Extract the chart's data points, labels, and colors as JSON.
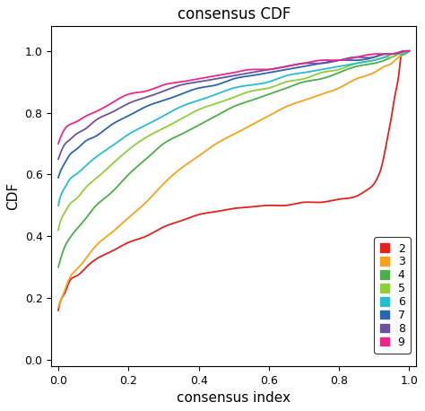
{
  "title": "consensus CDF",
  "xlabel": "consensus index",
  "ylabel": "CDF",
  "xlim": [
    -0.02,
    1.02
  ],
  "ylim": [
    -0.02,
    1.08
  ],
  "xticks": [
    0.0,
    0.2,
    0.4,
    0.6,
    0.8,
    1.0
  ],
  "yticks": [
    0.0,
    0.2,
    0.4,
    0.6,
    0.8,
    1.0
  ],
  "curves": [
    {
      "label": "2",
      "color": "#e4211c",
      "key_points": [
        [
          0.0,
          0.16
        ],
        [
          0.01,
          0.2
        ],
        [
          0.02,
          0.22
        ],
        [
          0.03,
          0.25
        ],
        [
          0.05,
          0.27
        ],
        [
          0.08,
          0.3
        ],
        [
          0.1,
          0.32
        ],
        [
          0.15,
          0.35
        ],
        [
          0.2,
          0.38
        ],
        [
          0.25,
          0.4
        ],
        [
          0.3,
          0.43
        ],
        [
          0.35,
          0.45
        ],
        [
          0.4,
          0.47
        ],
        [
          0.45,
          0.48
        ],
        [
          0.5,
          0.49
        ],
        [
          0.55,
          0.495
        ],
        [
          0.6,
          0.5
        ],
        [
          0.65,
          0.5
        ],
        [
          0.7,
          0.51
        ],
        [
          0.75,
          0.51
        ],
        [
          0.8,
          0.52
        ],
        [
          0.85,
          0.53
        ],
        [
          0.88,
          0.55
        ],
        [
          0.9,
          0.57
        ],
        [
          0.91,
          0.59
        ],
        [
          0.92,
          0.62
        ],
        [
          0.93,
          0.67
        ],
        [
          0.94,
          0.73
        ],
        [
          0.95,
          0.79
        ],
        [
          0.96,
          0.86
        ],
        [
          0.97,
          0.92
        ],
        [
          0.975,
          0.97
        ],
        [
          0.98,
          1.0
        ]
      ]
    },
    {
      "label": "3",
      "color": "#f8a11e",
      "key_points": [
        [
          0.0,
          0.17
        ],
        [
          0.01,
          0.2
        ],
        [
          0.02,
          0.23
        ],
        [
          0.03,
          0.26
        ],
        [
          0.05,
          0.29
        ],
        [
          0.08,
          0.33
        ],
        [
          0.1,
          0.36
        ],
        [
          0.15,
          0.41
        ],
        [
          0.2,
          0.46
        ],
        [
          0.25,
          0.51
        ],
        [
          0.3,
          0.57
        ],
        [
          0.35,
          0.62
        ],
        [
          0.4,
          0.66
        ],
        [
          0.45,
          0.7
        ],
        [
          0.5,
          0.73
        ],
        [
          0.55,
          0.76
        ],
        [
          0.6,
          0.79
        ],
        [
          0.65,
          0.82
        ],
        [
          0.7,
          0.84
        ],
        [
          0.75,
          0.86
        ],
        [
          0.8,
          0.88
        ],
        [
          0.85,
          0.91
        ],
        [
          0.9,
          0.93
        ],
        [
          0.93,
          0.95
        ],
        [
          0.95,
          0.96
        ],
        [
          0.97,
          0.98
        ],
        [
          0.99,
          0.99
        ],
        [
          1.0,
          1.0
        ]
      ]
    },
    {
      "label": "4",
      "color": "#4dae49",
      "key_points": [
        [
          0.0,
          0.3
        ],
        [
          0.01,
          0.34
        ],
        [
          0.02,
          0.37
        ],
        [
          0.03,
          0.39
        ],
        [
          0.05,
          0.42
        ],
        [
          0.08,
          0.46
        ],
        [
          0.1,
          0.49
        ],
        [
          0.15,
          0.54
        ],
        [
          0.2,
          0.6
        ],
        [
          0.25,
          0.65
        ],
        [
          0.3,
          0.7
        ],
        [
          0.35,
          0.73
        ],
        [
          0.4,
          0.76
        ],
        [
          0.45,
          0.79
        ],
        [
          0.5,
          0.82
        ],
        [
          0.55,
          0.84
        ],
        [
          0.6,
          0.86
        ],
        [
          0.65,
          0.88
        ],
        [
          0.7,
          0.9
        ],
        [
          0.75,
          0.91
        ],
        [
          0.8,
          0.93
        ],
        [
          0.85,
          0.95
        ],
        [
          0.9,
          0.96
        ],
        [
          0.93,
          0.97
        ],
        [
          0.95,
          0.98
        ],
        [
          0.97,
          0.99
        ],
        [
          1.0,
          1.0
        ]
      ]
    },
    {
      "label": "5",
      "color": "#8fce38",
      "key_points": [
        [
          0.0,
          0.42
        ],
        [
          0.01,
          0.46
        ],
        [
          0.02,
          0.48
        ],
        [
          0.03,
          0.5
        ],
        [
          0.05,
          0.52
        ],
        [
          0.08,
          0.56
        ],
        [
          0.1,
          0.58
        ],
        [
          0.15,
          0.63
        ],
        [
          0.2,
          0.68
        ],
        [
          0.25,
          0.72
        ],
        [
          0.3,
          0.75
        ],
        [
          0.35,
          0.78
        ],
        [
          0.4,
          0.81
        ],
        [
          0.45,
          0.83
        ],
        [
          0.5,
          0.85
        ],
        [
          0.55,
          0.87
        ],
        [
          0.6,
          0.88
        ],
        [
          0.65,
          0.9
        ],
        [
          0.7,
          0.91
        ],
        [
          0.75,
          0.93
        ],
        [
          0.8,
          0.94
        ],
        [
          0.85,
          0.96
        ],
        [
          0.9,
          0.97
        ],
        [
          0.93,
          0.98
        ],
        [
          0.95,
          0.98
        ],
        [
          0.97,
          0.99
        ],
        [
          1.0,
          1.0
        ]
      ]
    },
    {
      "label": "6",
      "color": "#26bdce",
      "key_points": [
        [
          0.0,
          0.5
        ],
        [
          0.01,
          0.54
        ],
        [
          0.02,
          0.56
        ],
        [
          0.03,
          0.58
        ],
        [
          0.05,
          0.6
        ],
        [
          0.08,
          0.63
        ],
        [
          0.1,
          0.65
        ],
        [
          0.15,
          0.69
        ],
        [
          0.2,
          0.73
        ],
        [
          0.25,
          0.76
        ],
        [
          0.3,
          0.79
        ],
        [
          0.35,
          0.82
        ],
        [
          0.4,
          0.84
        ],
        [
          0.45,
          0.86
        ],
        [
          0.5,
          0.88
        ],
        [
          0.55,
          0.89
        ],
        [
          0.6,
          0.9
        ],
        [
          0.65,
          0.92
        ],
        [
          0.7,
          0.93
        ],
        [
          0.75,
          0.94
        ],
        [
          0.8,
          0.95
        ],
        [
          0.85,
          0.96
        ],
        [
          0.9,
          0.97
        ],
        [
          0.93,
          0.98
        ],
        [
          0.95,
          0.99
        ],
        [
          0.97,
          0.99
        ],
        [
          1.0,
          1.0
        ]
      ]
    },
    {
      "label": "7",
      "color": "#2b65af",
      "key_points": [
        [
          0.0,
          0.59
        ],
        [
          0.01,
          0.62
        ],
        [
          0.02,
          0.64
        ],
        [
          0.03,
          0.66
        ],
        [
          0.05,
          0.68
        ],
        [
          0.08,
          0.71
        ],
        [
          0.1,
          0.72
        ],
        [
          0.15,
          0.76
        ],
        [
          0.2,
          0.79
        ],
        [
          0.25,
          0.82
        ],
        [
          0.3,
          0.84
        ],
        [
          0.35,
          0.86
        ],
        [
          0.4,
          0.88
        ],
        [
          0.45,
          0.89
        ],
        [
          0.5,
          0.91
        ],
        [
          0.55,
          0.92
        ],
        [
          0.6,
          0.93
        ],
        [
          0.65,
          0.94
        ],
        [
          0.7,
          0.95
        ],
        [
          0.75,
          0.96
        ],
        [
          0.8,
          0.97
        ],
        [
          0.85,
          0.97
        ],
        [
          0.9,
          0.98
        ],
        [
          0.93,
          0.99
        ],
        [
          0.95,
          0.99
        ],
        [
          0.97,
          0.995
        ],
        [
          1.0,
          1.0
        ]
      ]
    },
    {
      "label": "8",
      "color": "#6a51a3",
      "key_points": [
        [
          0.0,
          0.65
        ],
        [
          0.01,
          0.68
        ],
        [
          0.02,
          0.7
        ],
        [
          0.03,
          0.71
        ],
        [
          0.05,
          0.73
        ],
        [
          0.08,
          0.75
        ],
        [
          0.1,
          0.77
        ],
        [
          0.15,
          0.8
        ],
        [
          0.2,
          0.83
        ],
        [
          0.25,
          0.85
        ],
        [
          0.3,
          0.87
        ],
        [
          0.35,
          0.89
        ],
        [
          0.4,
          0.9
        ],
        [
          0.45,
          0.91
        ],
        [
          0.5,
          0.92
        ],
        [
          0.55,
          0.93
        ],
        [
          0.6,
          0.94
        ],
        [
          0.65,
          0.95
        ],
        [
          0.7,
          0.96
        ],
        [
          0.75,
          0.96
        ],
        [
          0.8,
          0.97
        ],
        [
          0.85,
          0.98
        ],
        [
          0.9,
          0.98
        ],
        [
          0.93,
          0.99
        ],
        [
          0.95,
          0.99
        ],
        [
          0.97,
          0.995
        ],
        [
          1.0,
          1.0
        ]
      ]
    },
    {
      "label": "9",
      "color": "#e8298a",
      "key_points": [
        [
          0.0,
          0.7
        ],
        [
          0.01,
          0.73
        ],
        [
          0.02,
          0.75
        ],
        [
          0.03,
          0.76
        ],
        [
          0.05,
          0.77
        ],
        [
          0.08,
          0.79
        ],
        [
          0.1,
          0.8
        ],
        [
          0.15,
          0.83
        ],
        [
          0.2,
          0.86
        ],
        [
          0.25,
          0.87
        ],
        [
          0.3,
          0.89
        ],
        [
          0.35,
          0.9
        ],
        [
          0.4,
          0.91
        ],
        [
          0.45,
          0.92
        ],
        [
          0.5,
          0.93
        ],
        [
          0.55,
          0.94
        ],
        [
          0.6,
          0.94
        ],
        [
          0.65,
          0.95
        ],
        [
          0.7,
          0.96
        ],
        [
          0.75,
          0.97
        ],
        [
          0.8,
          0.97
        ],
        [
          0.85,
          0.98
        ],
        [
          0.9,
          0.99
        ],
        [
          0.93,
          0.99
        ],
        [
          0.95,
          0.99
        ],
        [
          0.97,
          0.995
        ],
        [
          1.0,
          1.0
        ]
      ]
    }
  ],
  "legend_fontsize": 9,
  "title_fontsize": 12,
  "axis_label_fontsize": 11,
  "tick_fontsize": 9,
  "linewidth": 1.3,
  "background_color": "#ffffff"
}
